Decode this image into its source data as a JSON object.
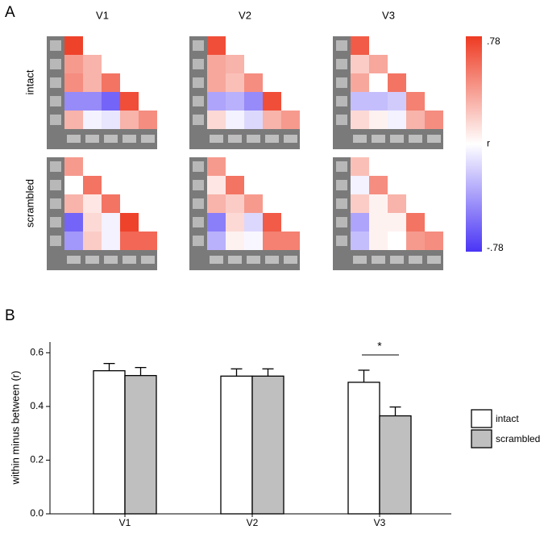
{
  "chart_data": [
    {
      "type": "heatmap",
      "panel": "A",
      "columns": [
        "V1",
        "V2",
        "V3"
      ],
      "rows": [
        "intact",
        "scrambled"
      ],
      "matrices": [
        [
          [
            [
              0.75
            ],
            [
              0.4,
              0.3
            ],
            [
              0.45,
              0.3,
              0.55
            ],
            [
              -0.45,
              -0.45,
              -0.6,
              0.7
            ],
            [
              0.3,
              -0.05,
              -0.1,
              0.3,
              0.45
            ]
          ],
          [
            [
              0.7
            ],
            [
              0.35,
              0.3
            ],
            [
              0.35,
              0.25,
              0.45
            ],
            [
              -0.35,
              -0.3,
              -0.45,
              0.7
            ],
            [
              0.15,
              -0.05,
              -0.15,
              0.3,
              0.4
            ]
          ],
          [
            [
              0.65
            ],
            [
              0.2,
              0.35
            ],
            [
              0.35,
              0.0,
              0.55
            ],
            [
              -0.25,
              -0.25,
              -0.2,
              0.5
            ],
            [
              0.15,
              0.05,
              -0.05,
              0.3,
              0.45
            ]
          ]
        ],
        [
          [
            [
              0.4
            ],
            [
              0.0,
              0.55
            ],
            [
              0.3,
              0.1,
              0.55
            ],
            [
              -0.6,
              0.15,
              -0.05,
              0.75
            ],
            [
              -0.4,
              0.2,
              -0.05,
              0.6,
              0.6
            ]
          ],
          [
            [
              0.4
            ],
            [
              0.1,
              0.55
            ],
            [
              0.3,
              0.2,
              0.4
            ],
            [
              -0.5,
              0.15,
              -0.15,
              0.65
            ],
            [
              -0.3,
              0.05,
              -0.03,
              0.5,
              0.5
            ]
          ],
          [
            [
              0.25
            ],
            [
              -0.05,
              0.45
            ],
            [
              0.2,
              0.05,
              0.3
            ],
            [
              -0.35,
              0.05,
              0.05,
              0.55
            ],
            [
              -0.25,
              0.05,
              0.0,
              0.4,
              0.45
            ]
          ]
        ]
      ],
      "clim": [
        -0.78,
        0.78
      ],
      "colors": {
        "low": "#4a35f5",
        "mid": "#ffffff",
        "high": "#ee3a22"
      },
      "colorbar_label": "r",
      "colorbar_ticks": [
        {
          "value": 0.78,
          "label": ".78"
        },
        {
          "value": -0.78,
          "label": "-.78"
        }
      ]
    },
    {
      "type": "bar",
      "panel": "B",
      "ylabel": "within minus between (r)",
      "categories": [
        "V1",
        "V2",
        "V3"
      ],
      "series": [
        {
          "name": "intact",
          "color": "#ffffff",
          "values": [
            0.533,
            0.513,
            0.49
          ],
          "errors": [
            0.027,
            0.027,
            0.045
          ]
        },
        {
          "name": "scrambled",
          "color": "#bfbfbf",
          "values": [
            0.515,
            0.513,
            0.365
          ],
          "errors": [
            0.03,
            0.027,
            0.033
          ]
        }
      ],
      "ylim": [
        0,
        0.64
      ],
      "yticks": [
        {
          "value": 0,
          "label": "0.0"
        },
        0.2,
        0.4,
        0.6
      ],
      "significance": {
        "category": "V3",
        "label": "*"
      },
      "legend": "right"
    }
  ]
}
